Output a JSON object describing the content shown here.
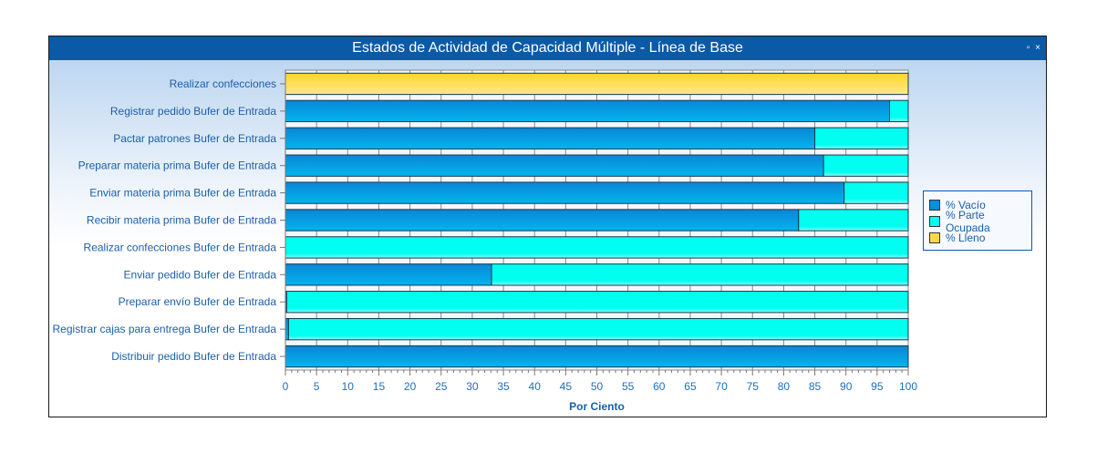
{
  "window": {
    "title": "Estados de Actividad de Capacidad Múltiple - Línea de Base",
    "restore_label": "▫",
    "close_label": "×"
  },
  "chart_data": {
    "type": "bar",
    "orientation": "horizontal",
    "stacked": true,
    "title": "Estados de Actividad de Capacidad Múltiple - Línea de Base",
    "xlabel": "Por Ciento",
    "ylabel": "",
    "xlim": [
      0,
      100
    ],
    "xticks": [
      0,
      5,
      10,
      15,
      20,
      25,
      30,
      35,
      40,
      45,
      50,
      55,
      60,
      65,
      70,
      75,
      80,
      85,
      90,
      95,
      100
    ],
    "legend_position": "right",
    "categories": [
      "Realizar confecciones",
      "Registrar pedido Bufer de Entrada",
      "Pactar patrones Bufer de Entrada",
      "Preparar materia prima Bufer de Entrada",
      "Enviar materia prima Bufer de Entrada",
      "Recibir materia prima Bufer de Entrada",
      "Realizar confecciones Bufer de Entrada",
      "Enviar pedido Bufer de Entrada",
      "Preparar envío Bufer de Entrada",
      "Registrar cajas para entrega Bufer de Entrada",
      "Distribuir pedido Bufer de Entrada"
    ],
    "series": [
      {
        "name": "% Vacío",
        "color": "#0a8fd8",
        "values": [
          0,
          97,
          85,
          86.4,
          89.7,
          82.4,
          0,
          33.1,
          0.2,
          0.5,
          100
        ]
      },
      {
        "name": "% Parte Ocupada",
        "color": "#00fff0",
        "values": [
          0,
          3,
          15,
          13.6,
          10.3,
          17.6,
          100,
          66.9,
          99.8,
          99.5,
          0
        ]
      },
      {
        "name": "% Lleno",
        "color": "#ffd84a",
        "values": [
          100,
          0,
          0,
          0,
          0,
          0,
          0,
          0,
          0,
          0,
          0
        ]
      }
    ]
  }
}
